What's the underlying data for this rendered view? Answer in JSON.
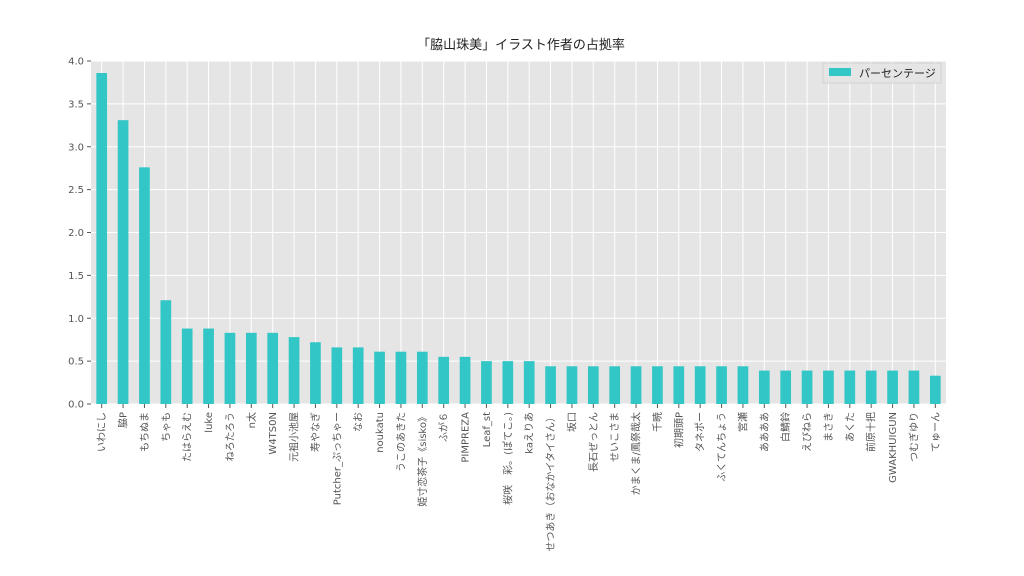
{
  "chart_data": {
    "type": "bar",
    "title": "「脇山珠美」イラスト作者の占拠率",
    "xlabel": "",
    "ylabel": "",
    "ylim": [
      0,
      4.0
    ],
    "yticks": [
      "0.0",
      "0.5",
      "1.0",
      "1.5",
      "2.0",
      "2.5",
      "3.0",
      "3.5",
      "4.0"
    ],
    "grid": true,
    "legend_position": "top-right",
    "bar_color": "#33c6c6",
    "background_color": "#e5e5e5",
    "series": [
      {
        "name": "パーセンテージ",
        "values": [
          3.86,
          3.31,
          2.76,
          1.21,
          0.88,
          0.88,
          0.83,
          0.83,
          0.83,
          0.78,
          0.72,
          0.66,
          0.66,
          0.61,
          0.61,
          0.61,
          0.55,
          0.55,
          0.5,
          0.5,
          0.5,
          0.44,
          0.44,
          0.44,
          0.44,
          0.44,
          0.44,
          0.44,
          0.44,
          0.44,
          0.44,
          0.39,
          0.39,
          0.39,
          0.39,
          0.39,
          0.39,
          0.39,
          0.39,
          0.33
        ]
      }
    ],
    "categories": [
      "いわにし",
      "脇P",
      "もちぬま",
      "ちゃも",
      "たはらえむ",
      "luke",
      "ねろたろう",
      "n太",
      "W4TS0N",
      "元祖小池屋",
      "寿やなぎ",
      "Putcher_ぷっちゃー",
      "なお",
      "noukatu",
      "うこのあきた",
      "姫寸恋茶子《sisko》",
      "ふが６",
      "PIMPREZA",
      "Leaf_st",
      "桜咲　彩。(ぽてこ。)",
      "kaえりあ",
      "せつあき（おなかイタイさん）",
      "坂口",
      "長石ぜっとん",
      "せいこさま",
      "かまくま/鳳祭哉太",
      "千暁",
      "初期頭P",
      "タネポー",
      "ふくてんちょう",
      "宮瀬",
      "ああああ",
      "白鯖鈴",
      "えびねら",
      "まさき",
      "あくた",
      "前原十把",
      "GWAKHUIGUN",
      "つむぎゆり",
      "てゅーん"
    ]
  }
}
